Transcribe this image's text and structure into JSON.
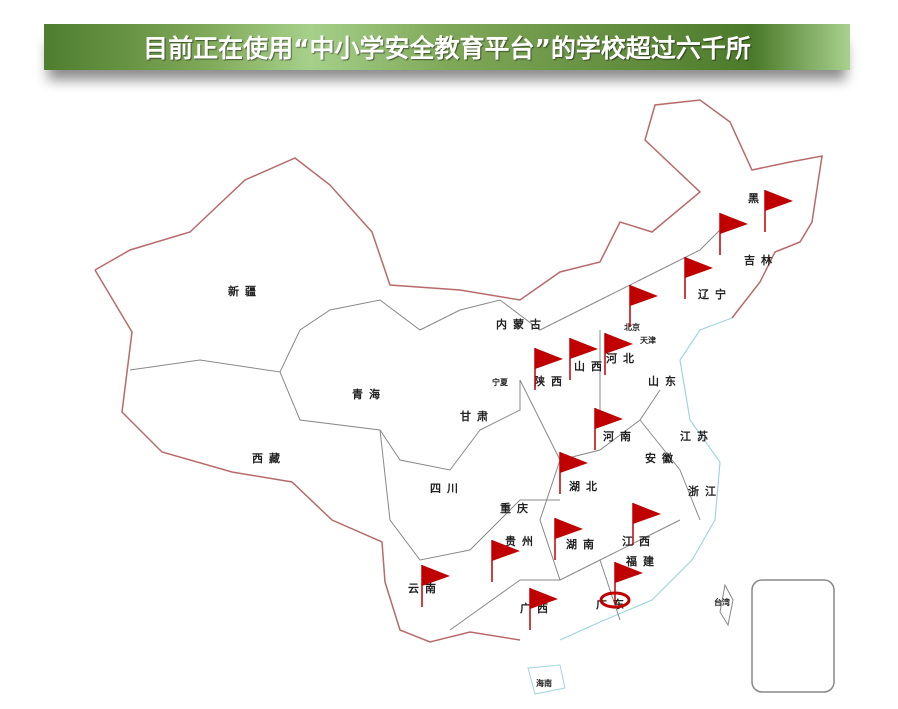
{
  "title": "目前正在使用“中小学安全教育平台”的学校超过六千所",
  "colors": {
    "banner": "#6f9a47",
    "border": "#b86a6a",
    "coast": "#9fd6dc",
    "flag": "#c00000"
  },
  "provinces": [
    "黑龙",
    "吉林",
    "辽宁",
    "内蒙古",
    "北京",
    "天津",
    "河北",
    "山西",
    "陕西",
    "宁夏",
    "甘肃",
    "青海",
    "新疆",
    "西藏",
    "山东",
    "河南",
    "江苏",
    "安徽",
    "湖北",
    "四川",
    "重庆",
    "浙江",
    "贵州",
    "湖南",
    "江西",
    "云南",
    "福建",
    "广西",
    "广东",
    "台湾",
    "海南"
  ],
  "flags_count": 15,
  "icons": {
    "flag": "red-flag-icon",
    "target": "target-ring-icon"
  }
}
